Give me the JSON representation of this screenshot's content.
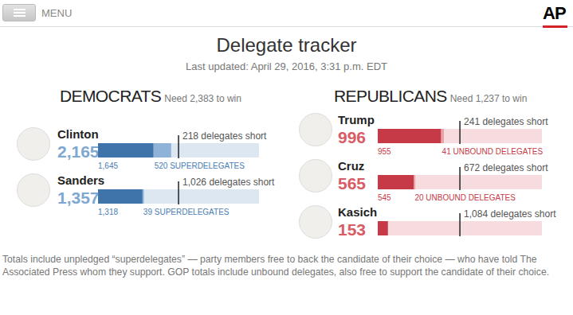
{
  "page": {
    "menu": "MENU",
    "logo": "AP",
    "title": "Delegate tracker",
    "subtitle": "Last updated: April 29, 2016, 3:31 p.m. EDT",
    "note": "Totals include unpledged “superdelegates” — party members free to back the candidate of their choice — who have told The Associated Press whom they support. GOP totals include unbound delegates, also free to support the candidate of their choice."
  },
  "chart_data": [
    {
      "type": "bar",
      "orientation": "horizontal",
      "stacked": true,
      "tick_labels": false,
      "title": "DEMOCRATS",
      "subtitle": "Need 2,383 to win",
      "target": 2383,
      "xlim": [
        0,
        4765
      ],
      "categories": [
        "Clinton",
        "Sanders"
      ],
      "totals": [
        "2,165",
        "1,357"
      ],
      "annotations": [
        "218 delegates short",
        "1,026 delegates short"
      ],
      "series": [
        {
          "color": "#3f74ab",
          "values": [
            1645,
            1318
          ],
          "value_labels": [
            "1,645",
            "1,318"
          ]
        },
        {
          "color": "#8fb2d9",
          "values": [
            520,
            39
          ],
          "value_labels": [
            "520 SUPERDELEGATES",
            "39 SUPERDELEGATES"
          ]
        }
      ]
    },
    {
      "type": "bar",
      "orientation": "horizontal",
      "stacked": true,
      "tick_labels": false,
      "title": "REPUBLICANS",
      "subtitle": "Need 1,237 to win",
      "target": 1237,
      "xlim": [
        0,
        2472
      ],
      "categories": [
        "Trump",
        "Cruz",
        "Kasich"
      ],
      "totals": [
        "996",
        "565",
        "153"
      ],
      "annotations": [
        "241 delegates short",
        "672 delegates short",
        "1,084 delegates short"
      ],
      "series": [
        {
          "color": "#c63a48",
          "values": [
            955,
            545,
            153
          ],
          "value_labels": [
            "955",
            "545",
            null
          ]
        },
        {
          "color": "#e8a3aa",
          "values": [
            41,
            20,
            0
          ],
          "value_labels": [
            "41 UNBOUND DELEGATES",
            "20 UNBOUND DELEGATES",
            null
          ]
        }
      ]
    }
  ]
}
